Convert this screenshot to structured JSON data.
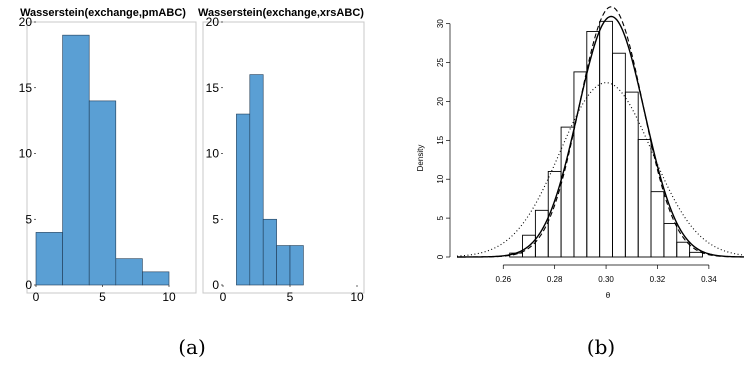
{
  "figure": {
    "panel_labels": [
      "(a)",
      "(b)"
    ],
    "hist_color": "#5a9fd4"
  },
  "chart_data": [
    {
      "type": "bar",
      "title": "Wasserstein(exchange,pmABC)",
      "bins": [
        [
          0,
          2
        ],
        [
          2,
          4
        ],
        [
          4,
          6
        ],
        [
          6,
          8
        ],
        [
          8,
          10
        ]
      ],
      "values": [
        4,
        19,
        14,
        2,
        1
      ],
      "xlim": [
        0,
        10
      ],
      "ylim": [
        0,
        20
      ],
      "xticks": [
        0,
        5,
        10
      ],
      "yticks": [
        0,
        5,
        10,
        15,
        20
      ],
      "xlabel": "",
      "ylabel": ""
    },
    {
      "type": "bar",
      "title": "Wasserstein(exchange,xrsABC)",
      "bins": [
        [
          1,
          2
        ],
        [
          2,
          3
        ],
        [
          3,
          4
        ],
        [
          4,
          5
        ],
        [
          5,
          6
        ]
      ],
      "values": [
        13,
        16,
        5,
        3,
        3
      ],
      "xlim": [
        0,
        10
      ],
      "ylim": [
        0,
        20
      ],
      "xticks": [
        0,
        5,
        10
      ],
      "yticks": [
        0,
        5,
        10,
        15,
        20
      ],
      "xlabel": "",
      "ylabel": ""
    },
    {
      "type": "bar",
      "title": "",
      "xlabel": "θ",
      "ylabel": "Density",
      "xlim": [
        0.242,
        0.356
      ],
      "ylim": [
        0,
        31.5
      ],
      "xticks": [
        0.26,
        0.28,
        0.3,
        0.32,
        0.34
      ],
      "yticks": [
        0,
        5,
        10,
        15,
        20,
        25,
        30
      ],
      "bin_start": 0.2625,
      "bin_width": 0.005,
      "densities": [
        0.5,
        2.8,
        6.0,
        11.0,
        16.7,
        23.8,
        29.0,
        30.3,
        26.2,
        21.2,
        15.1,
        8.4,
        4.3,
        1.9,
        0.6
      ],
      "series": [
        {
          "name": "",
          "style": "solid",
          "mean": 0.302,
          "sd": 0.0129,
          "scale": 1.0
        },
        {
          "name": "",
          "style": "dashed",
          "mean": 0.302,
          "sd": 0.0124,
          "scale": 1.0
        },
        {
          "name": "",
          "style": "dotted",
          "mean": 0.3,
          "sd": 0.0178,
          "scale": 1.0
        }
      ]
    }
  ]
}
